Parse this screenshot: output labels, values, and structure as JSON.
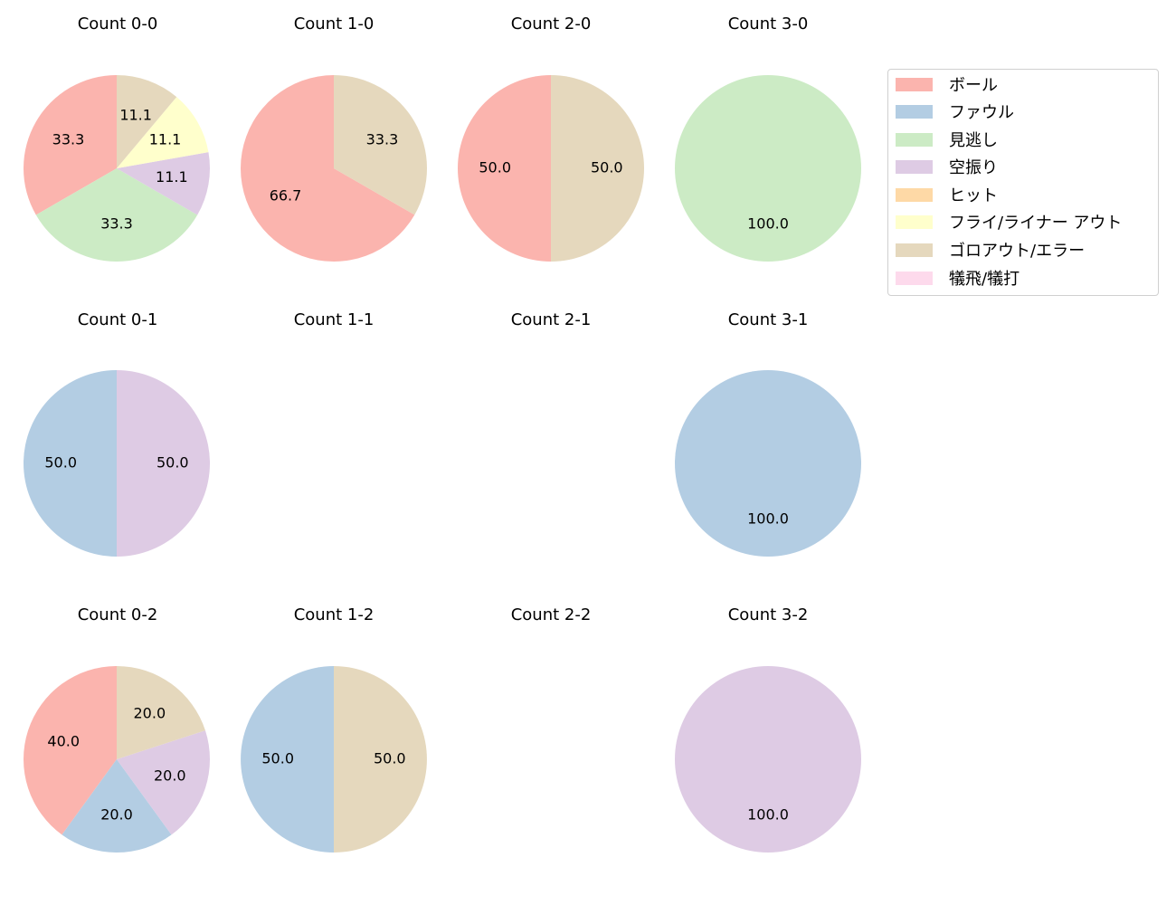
{
  "chart_data": {
    "type": "pie",
    "title": "",
    "legend": {
      "position": "upper right",
      "entries": [
        {
          "label": "ボール",
          "color": "#fbb4ae"
        },
        {
          "label": "ファウル",
          "color": "#b3cde3"
        },
        {
          "label": "見逃し",
          "color": "#ccebc5"
        },
        {
          "label": "空振り",
          "color": "#decbe4"
        },
        {
          "label": "ヒット",
          "color": "#fed9a6"
        },
        {
          "label": "フライ/ライナー アウト",
          "color": "#ffffcc"
        },
        {
          "label": "ゴロアウト/エラー",
          "color": "#e5d8bd"
        },
        {
          "label": "犠飛/犠打",
          "color": "#fddaec"
        }
      ]
    },
    "subplots": [
      {
        "title": "Count 0-0",
        "row": 0,
        "col": 0,
        "slices": [
          {
            "category": "ボール",
            "value": 33.3
          },
          {
            "category": "見逃し",
            "value": 33.3
          },
          {
            "category": "空振り",
            "value": 11.1
          },
          {
            "category": "フライ/ライナー アウト",
            "value": 11.1
          },
          {
            "category": "ゴロアウト/エラー",
            "value": 11.1
          }
        ]
      },
      {
        "title": "Count 1-0",
        "row": 0,
        "col": 1,
        "slices": [
          {
            "category": "ボール",
            "value": 66.7
          },
          {
            "category": "ゴロアウト/エラー",
            "value": 33.3
          }
        ]
      },
      {
        "title": "Count 2-0",
        "row": 0,
        "col": 2,
        "slices": [
          {
            "category": "ボール",
            "value": 50.0
          },
          {
            "category": "ゴロアウト/エラー",
            "value": 50.0
          }
        ]
      },
      {
        "title": "Count 3-0",
        "row": 0,
        "col": 3,
        "slices": [
          {
            "category": "見逃し",
            "value": 100.0
          }
        ]
      },
      {
        "title": "Count 0-1",
        "row": 1,
        "col": 0,
        "slices": [
          {
            "category": "ファウル",
            "value": 50.0
          },
          {
            "category": "空振り",
            "value": 50.0
          }
        ]
      },
      {
        "title": "Count 1-1",
        "row": 1,
        "col": 1,
        "slices": []
      },
      {
        "title": "Count 2-1",
        "row": 1,
        "col": 2,
        "slices": []
      },
      {
        "title": "Count 3-1",
        "row": 1,
        "col": 3,
        "slices": [
          {
            "category": "ファウル",
            "value": 100.0
          }
        ]
      },
      {
        "title": "Count 0-2",
        "row": 2,
        "col": 0,
        "slices": [
          {
            "category": "ボール",
            "value": 40.0
          },
          {
            "category": "ファウル",
            "value": 20.0
          },
          {
            "category": "空振り",
            "value": 20.0
          },
          {
            "category": "ゴロアウト/エラー",
            "value": 20.0
          }
        ]
      },
      {
        "title": "Count 1-2",
        "row": 2,
        "col": 1,
        "slices": [
          {
            "category": "ファウル",
            "value": 50.0
          },
          {
            "category": "ゴロアウト/エラー",
            "value": 50.0
          }
        ]
      },
      {
        "title": "Count 2-2",
        "row": 2,
        "col": 2,
        "slices": []
      },
      {
        "title": "Count 3-2",
        "row": 2,
        "col": 3,
        "slices": [
          {
            "category": "空振り",
            "value": 100.0
          }
        ]
      }
    ]
  },
  "titles": [
    "Count 0-0",
    "Count 1-0",
    "Count 2-0",
    "Count 3-0",
    "Count 0-1",
    "Count 1-1",
    "Count 2-1",
    "Count 3-1",
    "Count 0-2",
    "Count 1-2",
    "Count 2-2",
    "Count 3-2"
  ]
}
